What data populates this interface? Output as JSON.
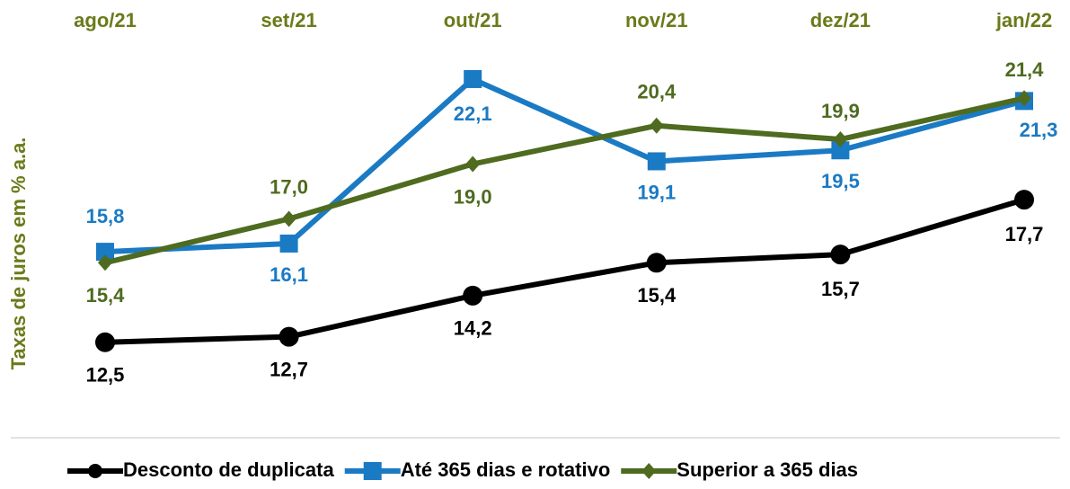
{
  "chart_data": {
    "type": "line",
    "ylabel": "Taxas de juros em % a.a.",
    "categories": [
      "ago/21",
      "set/21",
      "out/21",
      "nov/21",
      "dez/21",
      "jan/22"
    ],
    "ylim": [
      10,
      24
    ],
    "legend": "bottom",
    "series": [
      {
        "name": "Desconto de duplicata",
        "color": "#000000",
        "marker": "circle",
        "values": [
          12.5,
          12.7,
          14.2,
          15.4,
          15.7,
          17.7
        ],
        "value_labels": [
          "12,5",
          "12,7",
          "14,2",
          "15,4",
          "15,7",
          "17,7"
        ]
      },
      {
        "name": "Até 365 dias e rotativo",
        "color": "#1b7ac4",
        "marker": "square",
        "values": [
          15.8,
          16.1,
          22.1,
          19.1,
          19.5,
          21.3
        ],
        "value_labels": [
          "15,8",
          "16,1",
          "22,1",
          "19,1",
          "19,5",
          "21,3"
        ]
      },
      {
        "name": "Superior a 365 dias",
        "color": "#4e6b1f",
        "marker": "diamond",
        "values": [
          15.4,
          17.0,
          19.0,
          20.4,
          19.9,
          21.4
        ],
        "value_labels": [
          "15,4",
          "17,0",
          "19,0",
          "20,4",
          "19,9",
          "21,4"
        ]
      }
    ]
  }
}
